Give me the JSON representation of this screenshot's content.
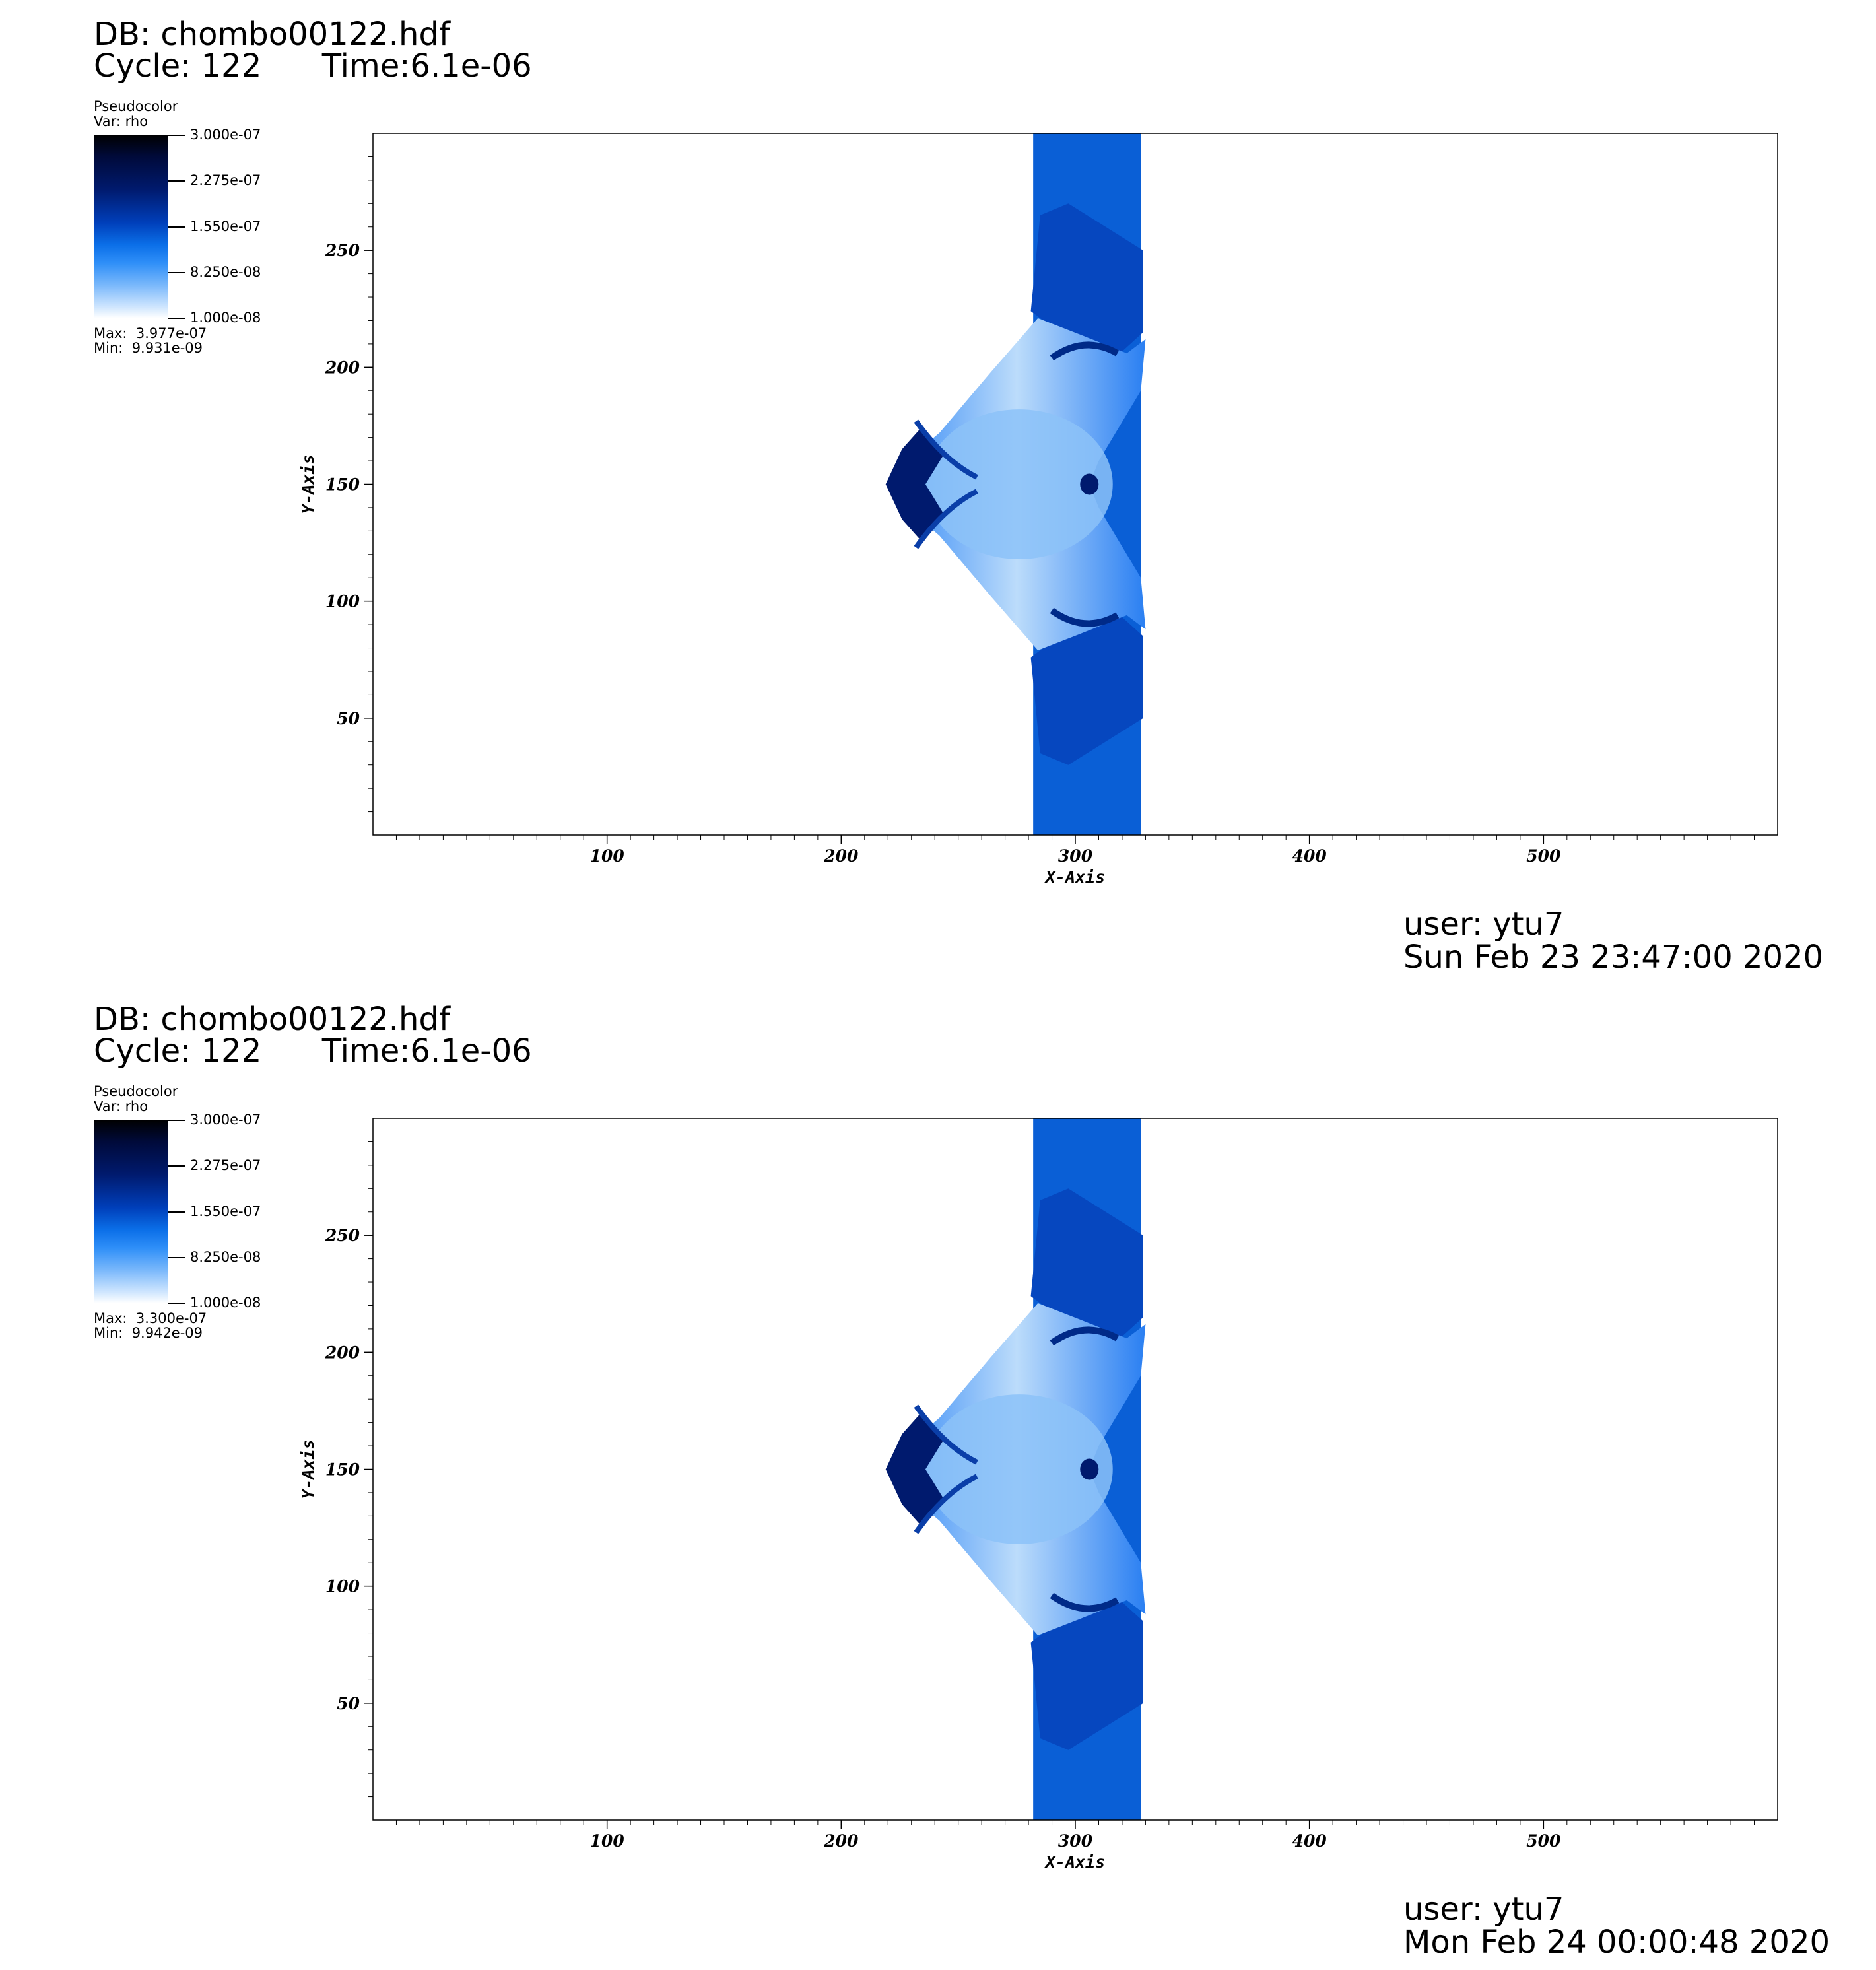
{
  "panels": [
    {
      "db": "DB: chombo00122.hdf",
      "cycle": "Cycle: 122",
      "time": "Time:6.1e-06",
      "legend": {
        "title": "Pseudocolor",
        "var": "Var: rho",
        "ticks": [
          "3.000e-07",
          "2.275e-07",
          "1.550e-07",
          "8.250e-08",
          "1.000e-08"
        ],
        "max": "Max:  3.977e-07",
        "min": "Min:  9.931e-09"
      },
      "user": "user: ytu7",
      "date": "Sun Feb 23 23:47:00 2020"
    },
    {
      "db": "DB: chombo00122.hdf",
      "cycle": "Cycle: 122",
      "time": "Time:6.1e-06",
      "legend": {
        "title": "Pseudocolor",
        "var": "Var: rho",
        "ticks": [
          "3.000e-07",
          "2.275e-07",
          "1.550e-07",
          "8.250e-08",
          "1.000e-08"
        ],
        "max": "Max:  3.300e-07",
        "min": "Min:  9.942e-09"
      },
      "user": "user: ytu7",
      "date": "Mon Feb 24 00:00:48 2020"
    }
  ],
  "chart_data": [
    {
      "type": "heatmap",
      "xlabel": "X-Axis",
      "ylabel": "Y-Axis",
      "xlim": [
        0,
        600
      ],
      "ylim": [
        0,
        300
      ],
      "xticks": [
        100,
        200,
        300,
        400,
        500
      ],
      "yticks": [
        50,
        100,
        150,
        200,
        250
      ],
      "colormap_range": [
        1e-08,
        3e-07
      ]
    },
    {
      "type": "heatmap",
      "xlabel": "X-Axis",
      "ylabel": "Y-Axis",
      "xlim": [
        0,
        600
      ],
      "ylim": [
        0,
        300
      ],
      "xticks": [
        100,
        200,
        300,
        400,
        500
      ],
      "yticks": [
        50,
        100,
        150,
        200,
        250
      ],
      "colormap_range": [
        1e-08,
        3e-07
      ]
    }
  ],
  "colors": {
    "slab": "#0a5fd6",
    "dark_feature": "#001a6e",
    "light_region": "#9ccaf9"
  }
}
